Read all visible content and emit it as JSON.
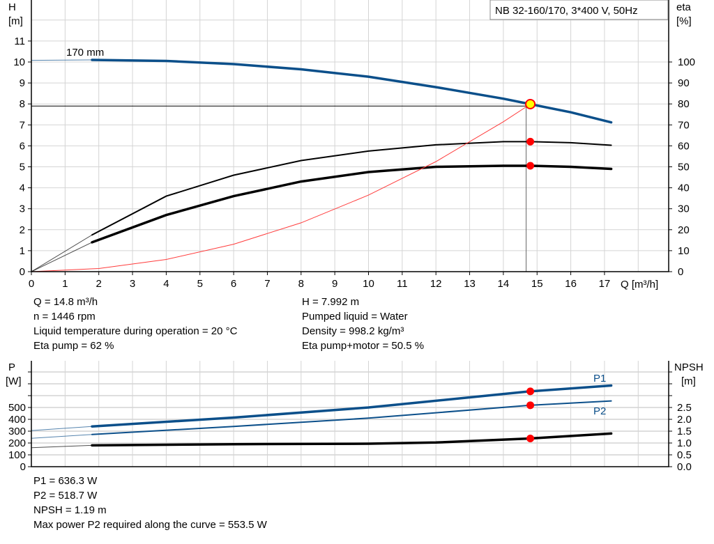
{
  "colors": {
    "curve_blue": "#0b4f8a",
    "curve_black": "#000000",
    "system_curve": "#ff3b3b",
    "point_red": "#ff0000",
    "duty_point_fill": "#ffff00",
    "grid": "#d4d4d4"
  },
  "chart_data": [
    {
      "type": "line",
      "title": "NB 32-160/170, 3*400 V, 50Hz",
      "xlabel": "Q [m³/h]",
      "ylabel": "H",
      "ylabel_unit": "[m]",
      "y2label": "eta",
      "y2label_unit": "[%]",
      "xlim": [
        0,
        18.9
      ],
      "ylim": [
        0,
        13
      ],
      "y2lim": [
        0,
        130
      ],
      "x_ticks": [
        "0",
        "1",
        "2",
        "3",
        "4",
        "5",
        "6",
        "7",
        "8",
        "9",
        "10",
        "11",
        "12",
        "13",
        "14",
        "15",
        "16",
        "17"
      ],
      "y_ticks": [
        "0",
        "1",
        "2",
        "3",
        "4",
        "5",
        "6",
        "7",
        "8",
        "9",
        "10",
        "11"
      ],
      "y2_ticks": [
        "0",
        "10",
        "20",
        "30",
        "40",
        "50",
        "60",
        "70",
        "80",
        "90",
        "100"
      ],
      "grid": true,
      "curve_label": "170 mm",
      "duty_point": {
        "Q": 14.8,
        "H": 7.992
      },
      "series": [
        {
          "id": "head",
          "axis": "H",
          "color": "#0b4f8a",
          "x": [
            0,
            1.8,
            4,
            6,
            8,
            10,
            12,
            14,
            14.8,
            16,
            17.2
          ],
          "y": [
            10.08,
            10.1,
            10.05,
            9.9,
            9.65,
            9.3,
            8.8,
            8.25,
            7.99,
            7.6,
            7.12
          ]
        },
        {
          "id": "eta_pump",
          "axis": "eta",
          "color": "#000000",
          "x": [
            0,
            1.8,
            4,
            6,
            8,
            10,
            12,
            14,
            14.8,
            16,
            17.2
          ],
          "y": [
            0,
            17.5,
            36,
            46,
            53,
            57.5,
            60.5,
            62,
            62,
            61.5,
            60.3
          ]
        },
        {
          "id": "eta_pump_motor",
          "axis": "eta",
          "color": "#000000",
          "x": [
            0,
            1.8,
            4,
            6,
            8,
            10,
            12,
            14,
            14.8,
            16,
            17.2
          ],
          "y": [
            0,
            14,
            27,
            36,
            43,
            47.5,
            50,
            50.5,
            50.5,
            50,
            49
          ]
        },
        {
          "id": "system_curve",
          "axis": "H",
          "color": "#ff3b3b",
          "x": [
            0,
            2,
            4,
            6,
            8,
            10,
            12,
            14,
            14.8
          ],
          "y": [
            0,
            0.15,
            0.58,
            1.31,
            2.33,
            3.65,
            5.25,
            7.15,
            7.99
          ]
        }
      ]
    },
    {
      "type": "line",
      "ylabel": "P",
      "ylabel_unit": "[W]",
      "y2label": "NPSH",
      "y2label_unit": "[m]",
      "xlim": [
        0,
        18.9
      ],
      "ylim": [
        0,
        900
      ],
      "y2lim": [
        0,
        4.5
      ],
      "y_ticks": [
        "0",
        "100",
        "200",
        "300",
        "400",
        "500"
      ],
      "y2_ticks": [
        "0.0",
        "0.5",
        "1.0",
        "1.5",
        "2.0",
        "2.5"
      ],
      "grid": true,
      "series": [
        {
          "id": "P1",
          "name": "P1",
          "axis": "P",
          "color": "#0b4f8a",
          "x": [
            0,
            1.8,
            6,
            10,
            14.8,
            17.2
          ],
          "y": [
            305,
            340,
            415,
            500,
            636.3,
            685
          ]
        },
        {
          "id": "P2",
          "name": "P2",
          "axis": "P",
          "color": "#0b4f8a",
          "x": [
            0,
            1.8,
            6,
            10,
            14.8,
            17.2
          ],
          "y": [
            240,
            272,
            340,
            410,
            518.7,
            555
          ]
        },
        {
          "id": "NPSH",
          "axis": "NPSH",
          "color": "#000000",
          "x": [
            0,
            1.8,
            6,
            10,
            12,
            14.8,
            17.2
          ],
          "y": [
            0.8,
            0.9,
            0.95,
            0.97,
            1.02,
            1.19,
            1.4
          ]
        }
      ]
    }
  ],
  "info_top": {
    "left": [
      "Q = 14.8 m³/h",
      "n = 1446 rpm",
      "Liquid temperature during operation = 20 °C",
      "Eta pump = 62 %"
    ],
    "right": [
      "H = 7.992 m",
      "Pumped liquid = Water",
      "Density = 998.2 kg/m³",
      "Eta pump+motor = 50.5 %"
    ]
  },
  "info_bottom": [
    "P1 = 636.3 W",
    "P2 = 518.7 W",
    "NPSH = 1.19 m",
    "Max power P2 required along the curve = 553.5 W"
  ]
}
